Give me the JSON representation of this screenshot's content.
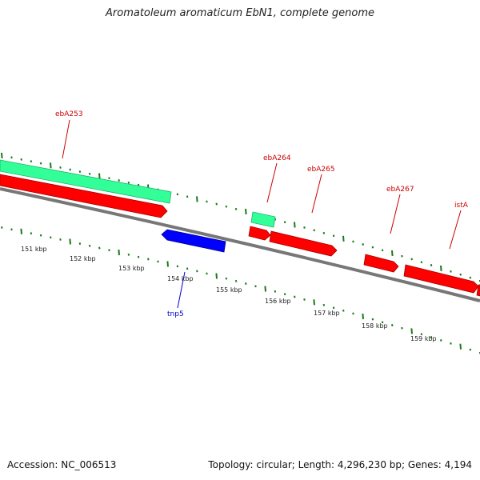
{
  "title": "Aromatoleum aromaticum EbN1, complete genome",
  "accession": "Accession: NC_006513",
  "summary": "Topology: circular; Length: 4,296,230 bp; Genes: 4,194",
  "colors": {
    "forward_gene": "#ff0000",
    "reverse_gene": "#0000ff",
    "rna_feature": "#33ff99",
    "backbone": "#777777",
    "ticks": "#1a7a1a"
  },
  "kbp_labels": [
    "151 kbp",
    "152 kbp",
    "153 kbp",
    "154 kbp",
    "155 kbp",
    "156 kbp",
    "157 kbp",
    "158 kbp",
    "159 kbp"
  ],
  "gene_labels": [
    "ebA253",
    "ebA264",
    "ebA265",
    "ebA267",
    "istA",
    "tnp5"
  ]
}
